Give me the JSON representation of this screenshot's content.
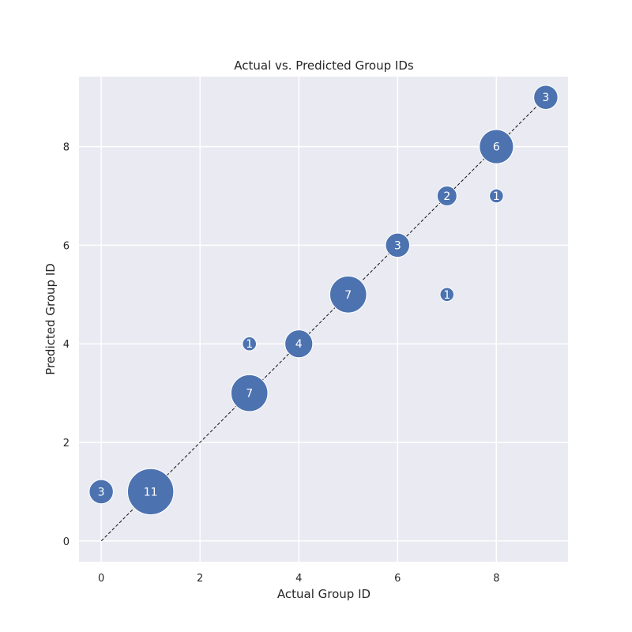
{
  "chart_data": {
    "type": "scatter",
    "title": "Actual vs. Predicted Group IDs",
    "xlabel": "Actual Group ID",
    "ylabel": "Predicted Group ID",
    "xlim": [
      -0.45,
      9.45
    ],
    "ylim": [
      -0.42,
      9.42
    ],
    "xticks": [
      0,
      2,
      4,
      6,
      8
    ],
    "yticks": [
      0,
      2,
      4,
      6,
      8
    ],
    "grid": true,
    "diagonal_reference_line": {
      "from": [
        0,
        0
      ],
      "to": [
        9,
        9
      ],
      "style": "dashed"
    },
    "marker_color": "#4c72b0",
    "plot_background": "#eaeaf2",
    "points": [
      {
        "x": 0,
        "y": 1,
        "count": 3
      },
      {
        "x": 1,
        "y": 1,
        "count": 11
      },
      {
        "x": 3,
        "y": 3,
        "count": 7
      },
      {
        "x": 3,
        "y": 4,
        "count": 1
      },
      {
        "x": 4,
        "y": 4,
        "count": 4
      },
      {
        "x": 5,
        "y": 5,
        "count": 7
      },
      {
        "x": 6,
        "y": 6,
        "count": 3
      },
      {
        "x": 7,
        "y": 5,
        "count": 1
      },
      {
        "x": 7,
        "y": 7,
        "count": 2
      },
      {
        "x": 8,
        "y": 7,
        "count": 1
      },
      {
        "x": 8,
        "y": 8,
        "count": 6
      },
      {
        "x": 9,
        "y": 9,
        "count": 3
      }
    ]
  }
}
